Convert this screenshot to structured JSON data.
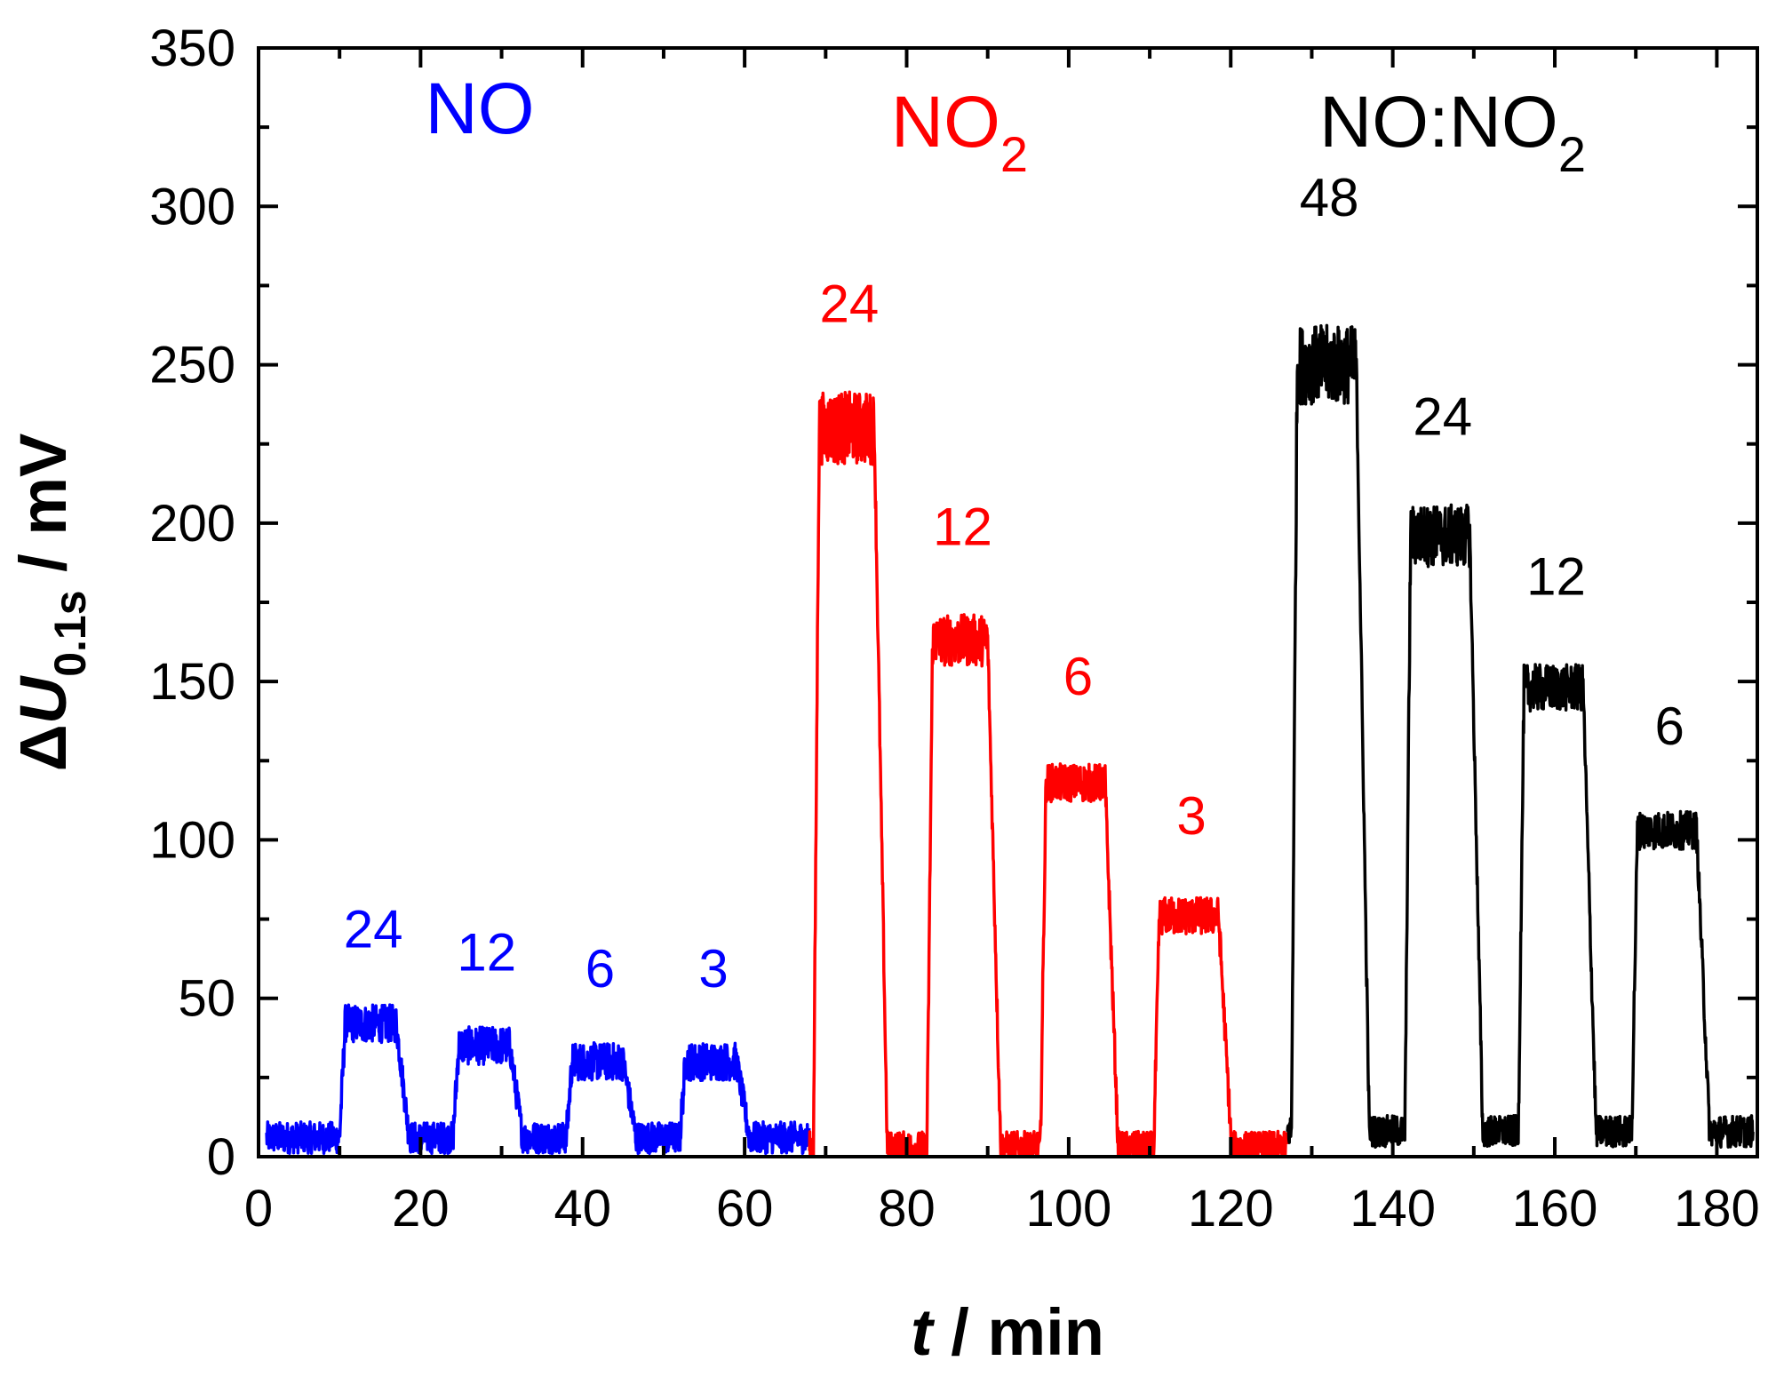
{
  "chart_data": {
    "type": "line",
    "xlabel": {
      "italic": "t",
      "rest": " / min"
    },
    "ylabel": {
      "delta": "Δ",
      "italic": "U",
      "sub": "0.1s",
      "rest": " / mV"
    },
    "xlim": [
      0,
      185
    ],
    "ylim": [
      0,
      350
    ],
    "xticks": [
      0,
      20,
      40,
      60,
      80,
      100,
      120,
      140,
      160,
      180
    ],
    "yticks": [
      0,
      50,
      100,
      150,
      200,
      250,
      300,
      350
    ],
    "grid": false,
    "series": [
      {
        "name": "NO",
        "color": "#0000ff",
        "t_start": 1,
        "t_end": 68,
        "baseline": 6,
        "pulses": [
          {
            "concentration": "24",
            "on": 10,
            "off": 17,
            "level": 42
          },
          {
            "concentration": "12",
            "on": 24,
            "off": 31,
            "level": 35
          },
          {
            "concentration": "6",
            "on": 38,
            "off": 45,
            "level": 30
          },
          {
            "concentration": "3",
            "on": 52,
            "off": 59,
            "level": 30
          }
        ]
      },
      {
        "name": "NO2",
        "color": "#ff0000",
        "t_start": 68,
        "t_end": 127,
        "baseline": 3,
        "pulses": [
          {
            "concentration": "24",
            "on": 68.5,
            "off": 76,
            "level": 230
          },
          {
            "concentration": "12",
            "on": 82.5,
            "off": 90,
            "level": 163
          },
          {
            "concentration": "6",
            "on": 96.5,
            "off": 104.5,
            "level": 118
          },
          {
            "concentration": "3",
            "on": 110.5,
            "off": 118.5,
            "level": 76
          }
        ]
      },
      {
        "name": "NO:NO2",
        "color": "#000000",
        "t_start": 127,
        "t_end": 184.5,
        "baseline": 8,
        "pulses": [
          {
            "concentration": "48",
            "on": 127.5,
            "off": 135.5,
            "level": 250
          },
          {
            "concentration": "24",
            "on": 141.5,
            "off": 149.5,
            "level": 196
          },
          {
            "concentration": "12",
            "on": 155.5,
            "off": 163.5,
            "level": 148
          },
          {
            "concentration": "6",
            "on": 169.5,
            "off": 177.5,
            "level": 103
          }
        ]
      }
    ],
    "group_labels": [
      {
        "text": "NO",
        "sub": "",
        "color": "#0000ff"
      },
      {
        "text": "NO",
        "sub": "2",
        "color": "#ff0000"
      },
      {
        "text": "NO:NO",
        "sub": "2",
        "color": "#000000"
      }
    ]
  }
}
